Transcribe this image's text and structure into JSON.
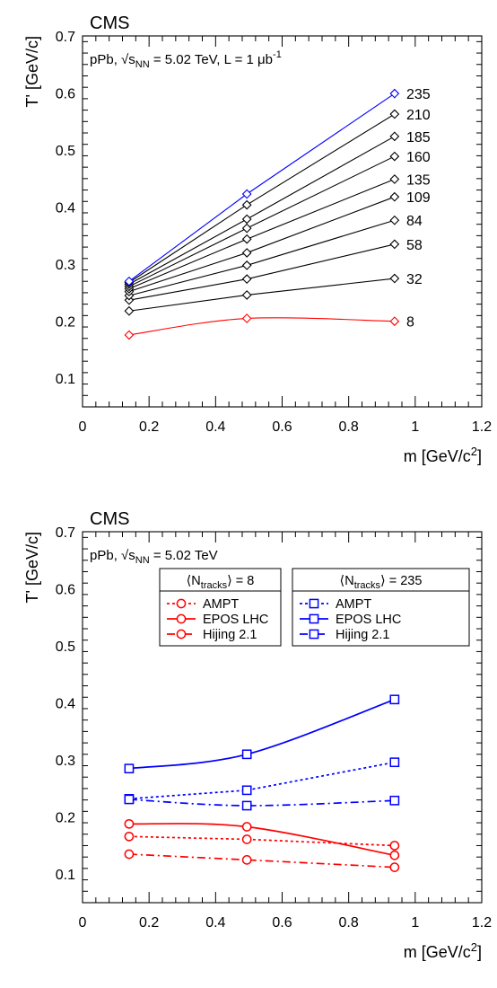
{
  "chart_data": [
    {
      "type": "line",
      "experiment_label": "CMS",
      "annotation": {
        "prefix": "pPb, ",
        "sqrt": "s",
        "sub": "NN",
        "rest": " = 5.02 TeV, L = 1 μb",
        "sup": "-1"
      },
      "xlabel": {
        "main": "m [GeV/c",
        "sup": "2",
        "end": "]"
      },
      "ylabel": "T' [GeV/c]",
      "xlim": [
        0,
        1.2
      ],
      "ylim": [
        0.05,
        0.7
      ],
      "xticks": [
        "0",
        "0.2",
        "0.4",
        "0.6",
        "0.8",
        "1",
        "1.2"
      ],
      "yticks": [
        "0.1",
        "0.2",
        "0.3",
        "0.4",
        "0.5",
        "0.6",
        "0.7"
      ],
      "marker": "open-diamond",
      "x": [
        0.14,
        0.494,
        0.938
      ],
      "series": [
        {
          "name": "8",
          "color": "#ff0000",
          "smooth": true,
          "values": [
            0.176,
            0.205,
            0.2
          ]
        },
        {
          "name": "32",
          "color": "#000000",
          "values": [
            0.218,
            0.246,
            0.275
          ]
        },
        {
          "name": "58",
          "color": "#000000",
          "values": [
            0.237,
            0.274,
            0.335
          ]
        },
        {
          "name": "84",
          "color": "#000000",
          "values": [
            0.245,
            0.298,
            0.377
          ]
        },
        {
          "name": "109",
          "color": "#000000",
          "values": [
            0.252,
            0.32,
            0.418
          ]
        },
        {
          "name": "135",
          "color": "#000000",
          "values": [
            0.257,
            0.344,
            0.449
          ]
        },
        {
          "name": "160",
          "color": "#000000",
          "values": [
            0.261,
            0.363,
            0.489
          ]
        },
        {
          "name": "185",
          "color": "#000000",
          "values": [
            0.265,
            0.379,
            0.524
          ]
        },
        {
          "name": "210",
          "color": "#000000",
          "values": [
            0.268,
            0.404,
            0.563
          ]
        },
        {
          "name": "235",
          "color": "#0000ff",
          "values": [
            0.27,
            0.423,
            0.599
          ],
          "errors": [
            0.004,
            0.007,
            0.008
          ]
        }
      ]
    },
    {
      "type": "line",
      "experiment_label": "CMS",
      "annotation": {
        "prefix": "pPb, ",
        "sqrt": "s",
        "sub": "NN",
        "rest": " = 5.02 TeV"
      },
      "xlabel": {
        "main": "m [GeV/c",
        "sup": "2",
        "end": "]"
      },
      "ylabel": "T' [GeV/c]",
      "xlim": [
        0,
        1.2
      ],
      "ylim": [
        0.05,
        0.7
      ],
      "xticks": [
        "0",
        "0.2",
        "0.4",
        "0.6",
        "0.8",
        "1",
        "1.2"
      ],
      "yticks": [
        "0.1",
        "0.2",
        "0.3",
        "0.4",
        "0.5",
        "0.6",
        "0.7"
      ],
      "x": [
        0.14,
        0.494,
        0.938
      ],
      "legend_groups": [
        {
          "header_pre": "N",
          "header_sub": "tracks",
          "header_post": " = 8",
          "color": "#ff0000",
          "marker": "open-circle",
          "entries": [
            "AMPT",
            "EPOS LHC",
            "Hijing 2.1"
          ]
        },
        {
          "header_pre": "N",
          "header_sub": "tracks",
          "header_post": " = 235",
          "color": "#0000ff",
          "marker": "open-square",
          "entries": [
            "AMPT",
            "EPOS LHC",
            "Hijing 2.1"
          ]
        }
      ],
      "series": [
        {
          "name": "AMPT",
          "group": "8",
          "color": "#ff0000",
          "marker": "open-circle",
          "style": "dotted",
          "values": [
            0.166,
            0.161,
            0.15
          ]
        },
        {
          "name": "EPOS LHC",
          "group": "8",
          "color": "#ff0000",
          "marker": "open-circle",
          "style": "solid",
          "smooth": true,
          "values": [
            0.188,
            0.183,
            0.133
          ]
        },
        {
          "name": "Hijing 2.1",
          "group": "8",
          "color": "#ff0000",
          "marker": "open-circle",
          "style": "dashdot",
          "values": [
            0.135,
            0.125,
            0.112
          ]
        },
        {
          "name": "AMPT",
          "group": "235",
          "color": "#0000ff",
          "marker": "open-square",
          "style": "dotted",
          "values": [
            0.232,
            0.247,
            0.296
          ]
        },
        {
          "name": "EPOS LHC",
          "group": "235",
          "color": "#0000ff",
          "marker": "open-square",
          "style": "solid",
          "smooth": true,
          "values": [
            0.285,
            0.31,
            0.406
          ]
        },
        {
          "name": "Hijing 2.1",
          "group": "235",
          "color": "#0000ff",
          "marker": "open-square",
          "style": "dashdot",
          "smooth": true,
          "values": [
            0.231,
            0.22,
            0.229
          ]
        }
      ]
    }
  ]
}
